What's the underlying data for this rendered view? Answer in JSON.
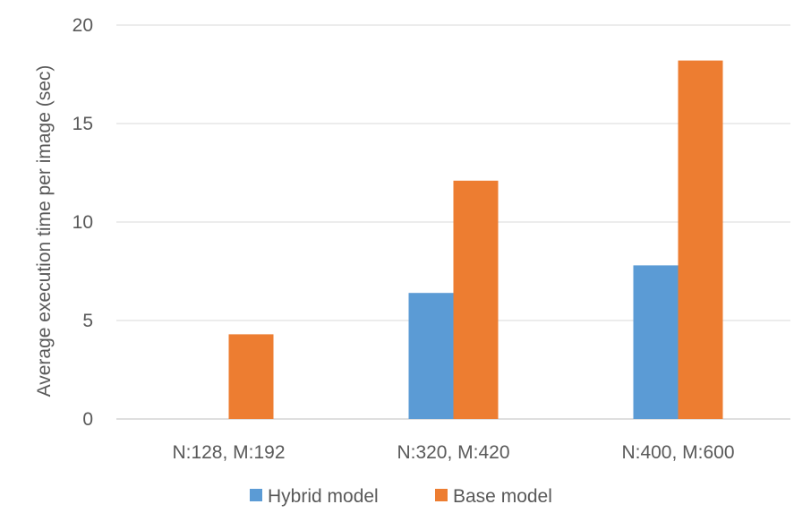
{
  "chart_data": {
    "type": "bar",
    "title": "",
    "xlabel": "",
    "ylabel": "Average execution time per image (sec)",
    "categories": [
      "N:128, M:192",
      "N:320, M:420",
      "N:400, M:600"
    ],
    "series": [
      {
        "name": "Hybrid model",
        "values": [
          0,
          6.4,
          7.8
        ],
        "color": "#5b9bd5"
      },
      {
        "name": "Base model",
        "values": [
          4.3,
          12.1,
          18.2
        ],
        "color": "#ed7d31"
      }
    ],
    "ylim": [
      0,
      20
    ],
    "yticks": [
      "0",
      "5",
      "10",
      "15",
      "20"
    ],
    "grid": true,
    "legend_position": "bottom"
  }
}
